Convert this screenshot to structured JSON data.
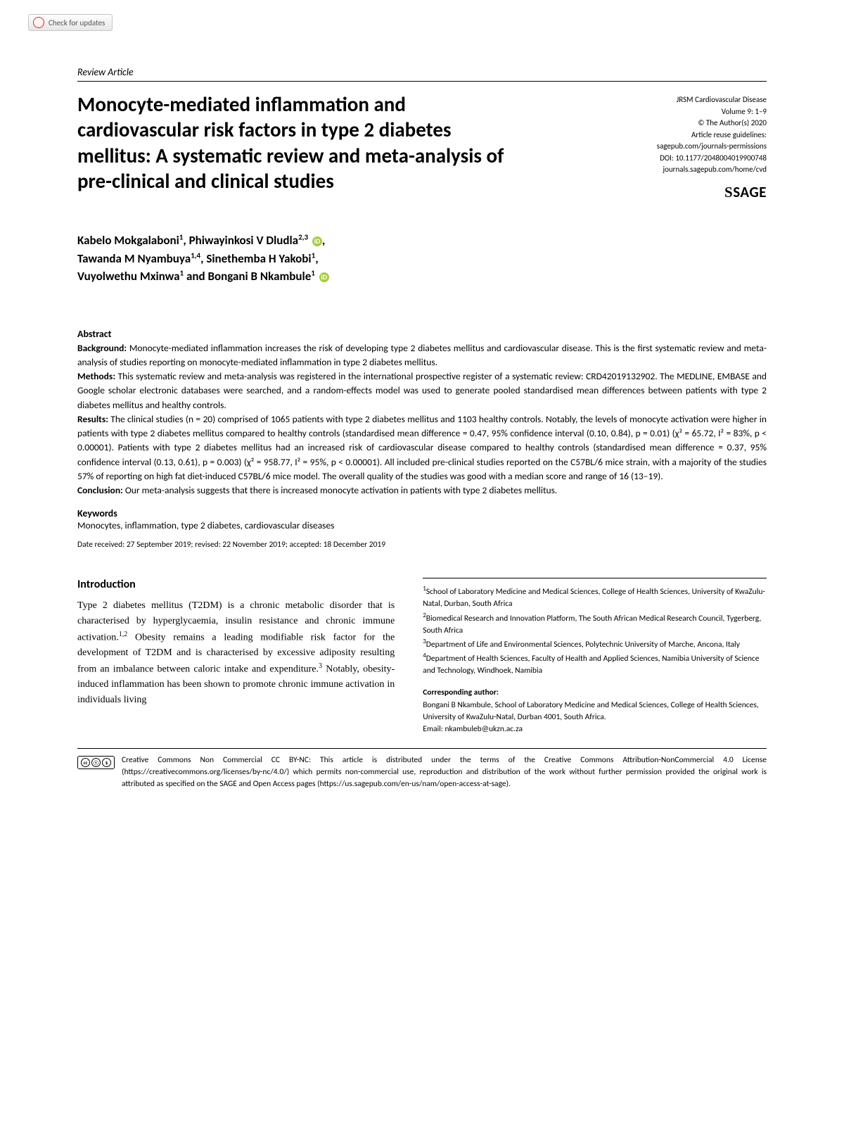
{
  "updates_label": "Check for updates",
  "article_type": "Review Article",
  "title": "Monocyte-mediated inflammation and cardiovascular risk factors in type 2 diabetes mellitus: A systematic review and meta-analysis of pre-clinical and clinical studies",
  "meta": {
    "journal": "JRSM Cardiovascular Disease",
    "volume": "Volume 9: 1–9",
    "copyright": "© The Author(s) 2020",
    "reuse": "Article reuse guidelines:",
    "reuse_url": "sagepub.com/journals-permissions",
    "doi": "DOI: 10.1177/2048004019900748",
    "journal_url": "journals.sagepub.com/home/cvd",
    "publisher": "SAGE"
  },
  "authors_html": "Kabelo Mokgalaboni<sup>1</sup>, Phiwayinkosi V Dludla<sup>2,3</sup> <span class='orcid'>iD</span>,<br>Tawanda M Nyambuya<sup>1,4</sup>, Sinethemba H Yakobi<sup>1</sup>,<br>Vuyolwethu Mxinwa<sup>1</sup> and Bongani B Nkambule<sup>1</sup> <span class='orcid'>iD</span>",
  "abstract": {
    "head": "Abstract",
    "background_label": "Background:",
    "background": " Monocyte-mediated inflammation increases the risk of developing type 2 diabetes mellitus and cardiovascular disease. This is the first systematic review and meta-analysis of studies reporting on monocyte-mediated inflammation in type 2 diabetes mellitus.",
    "methods_label": "Methods:",
    "methods": " This systematic review and meta-analysis was registered in the international prospective register of a systematic review: CRD42019132902. The MEDLINE, EMBASE and Google scholar electronic databases were searched, and a random-effects model was used to generate pooled standardised mean differences between patients with type 2 diabetes mellitus and healthy controls.",
    "results_label": "Results:",
    "results": " The clinical studies (n = 20) comprised of 1065 patients with type 2 diabetes mellitus and 1103 healthy controls. Notably, the levels of monocyte activation were higher in patients with type 2 diabetes mellitus compared to healthy controls (standardised mean difference = 0.47, 95% confidence interval (0.10, 0.84), p = 0.01) (χ² = 65.72, I² = 83%, p < 0.00001). Patients with type 2 diabetes mellitus had an increased risk of cardiovascular disease compared to healthy controls (standardised mean difference = 0.37, 95% confidence interval (0.13, 0.61), p = 0.003) (χ² = 958.77, I² = 95%, p < 0.00001). All included pre-clinical studies reported on the C57BL/6 mice strain, with a majority of the studies 57% of reporting on high fat diet-induced C57BL/6 mice model. The overall quality of the studies was good with a median score and range of 16 (13–19).",
    "conclusion_label": "Conclusion:",
    "conclusion": " Our meta-analysis suggests that there is increased monocyte activation in patients with type 2 diabetes mellitus."
  },
  "keywords": {
    "head": "Keywords",
    "body": "Monocytes, inflammation, type 2 diabetes, cardiovascular diseases"
  },
  "dates": "Date received: 27 September 2019; revised: 22 November 2019; accepted: 18 December 2019",
  "intro": {
    "head": "Introduction",
    "body": "Type 2 diabetes mellitus (T2DM) is a chronic metabolic disorder that is characterised by hyperglycaemia, insulin resistance and chronic immune activation.<sup>1,2</sup> Obesity remains a leading modifiable risk factor for the development of T2DM and is characterised by excessive adiposity resulting from an imbalance between caloric intake and expenditure.<sup>3</sup> Notably, obesity-induced inflammation has been shown to promote chronic immune activation in individuals living"
  },
  "affiliations": [
    "<sup>1</sup>School of Laboratory Medicine and Medical Sciences, College of Health Sciences, University of KwaZulu-Natal, Durban, South Africa",
    "<sup>2</sup>Biomedical Research and Innovation Platform, The South African Medical Research Council, Tygerberg, South Africa",
    "<sup>3</sup>Department of Life and Environmental Sciences, Polytechnic University of Marche, Ancona, Italy",
    "<sup>4</sup>Department of Health Sciences, Faculty of Health and Applied Sciences, Namibia University of Science and Technology, Windhoek, Namibia"
  ],
  "corresponding": {
    "head": "Corresponding author:",
    "body": "Bongani B Nkambule, School of Laboratory Medicine and Medical Sciences, College of Health Sciences, University of KwaZulu-Natal, Durban 4001, South Africa.",
    "email": "Email: nkambuleb@ukzn.ac.za"
  },
  "license": "Creative Commons Non Commercial CC BY-NC: This article is distributed under the terms of the Creative Commons Attribution-NonCommercial 4.0 License (https://creativecommons.org/licenses/by-nc/4.0/) which permits non-commercial use, reproduction and distribution of the work without further permission provided the original work is attributed as specified on the SAGE and Open Access pages (https://us.sagepub.com/en-us/nam/open-access-at-sage)."
}
